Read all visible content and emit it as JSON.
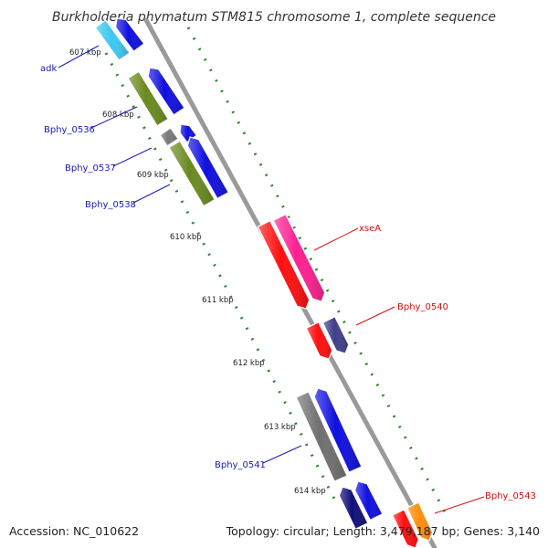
{
  "title": "Burkholderia phymatum STM815 chromosome 1, complete sequence",
  "footer": {
    "accession": "Accession: NC_010622",
    "summary": "Topology: circular; Length: 3,479,187 bp; Genes: 3,140"
  },
  "colors": {
    "backbone": "#9a9a9a",
    "tick_dots": "#2a8a2a",
    "label_forward_strand": "#1a1ab0",
    "label_reverse_strand": "#d01010"
  },
  "ticks": [
    {
      "label": "607 kbp"
    },
    {
      "label": "608 kbp"
    },
    {
      "label": "609 kbp"
    },
    {
      "label": "610 kbp"
    },
    {
      "label": "611 kbp"
    },
    {
      "label": "612 kbp"
    },
    {
      "label": "613 kbp"
    },
    {
      "label": "614 kbp"
    }
  ],
  "genes": [
    {
      "name": "adk",
      "strand": "forward",
      "label_color": "#1a1ab0"
    },
    {
      "name": "Bphy_0536",
      "strand": "forward",
      "label_color": "#1a1ab0"
    },
    {
      "name": "Bphy_0537",
      "strand": "forward",
      "label_color": "#1a1ab0"
    },
    {
      "name": "Bphy_0538",
      "strand": "forward",
      "label_color": "#1a1ab0"
    },
    {
      "name": "xseA",
      "strand": "reverse",
      "label_color": "#d01010"
    },
    {
      "name": "Bphy_0540",
      "strand": "reverse",
      "label_color": "#d01010"
    },
    {
      "name": "Bphy_0541",
      "strand": "forward",
      "label_color": "#1a1ab0"
    },
    {
      "name": "Bphy_0543",
      "strand": "reverse",
      "label_color": "#d01010"
    }
  ],
  "feature_colors": [
    "#3ec8f0",
    "#1010e0",
    "#6a8a20",
    "#1010e0",
    "#7a7a7a",
    "#1010e0",
    "#ff1010",
    "#ff2090",
    "#ff1010",
    "#40408a",
    "#707070",
    "#1010e0",
    "#10107a",
    "#1010e0",
    "#ff1010",
    "#ff9010"
  ]
}
